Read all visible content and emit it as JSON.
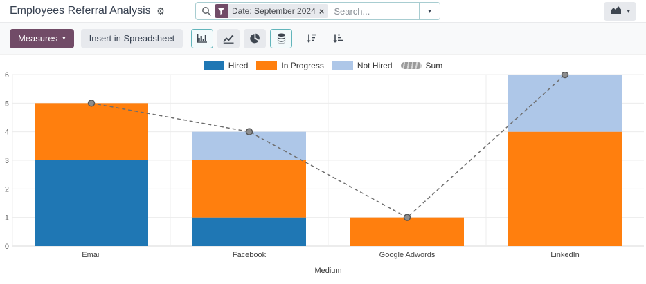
{
  "icons": {
    "gear": "⚙",
    "close": "×",
    "caret": "▾"
  },
  "colors": {
    "brand_primary": "#714B67",
    "active_button_border": "#62b5bb",
    "search_border": "#a8cdd1",
    "toolbar_bg": "#f8f9fa",
    "button_bg": "#e7e9ed"
  },
  "header": {
    "title": "Employees Referral Analysis",
    "search": {
      "facet_label": "Date: September 2024",
      "placeholder": "Search..."
    }
  },
  "toolbar": {
    "measures_label": "Measures",
    "insert_spreadsheet_label": "Insert in Spreadsheet",
    "chart_type_buttons": [
      "bar-chart",
      "line-chart",
      "pie-chart",
      "stacked"
    ],
    "active_buttons": [
      "bar-chart",
      "stacked"
    ],
    "sort_buttons": [
      "sort-descending",
      "sort-ascending"
    ]
  },
  "chart_data": {
    "type": "bar",
    "stacked": true,
    "categories": [
      "Email",
      "Facebook",
      "Google Adwords",
      "LinkedIn"
    ],
    "series": [
      {
        "name": "Hired",
        "color": "#1f77b4",
        "values": [
          3,
          1,
          0,
          0
        ]
      },
      {
        "name": "In Progress",
        "color": "#ff7f0e",
        "values": [
          2,
          2,
          1,
          4
        ]
      },
      {
        "name": "Not Hired",
        "color": "#aec7e8",
        "values": [
          0,
          1,
          0,
          2
        ]
      }
    ],
    "sum_line": {
      "name": "Sum",
      "color": "#8d8d8d",
      "values": [
        5,
        4,
        1,
        6
      ]
    },
    "title": "",
    "xlabel": "Medium",
    "ylabel": "",
    "ylim": [
      0,
      6
    ],
    "yticks": [
      0,
      1,
      2,
      3,
      4,
      5,
      6
    ],
    "grid": true,
    "legend_position": "top"
  }
}
